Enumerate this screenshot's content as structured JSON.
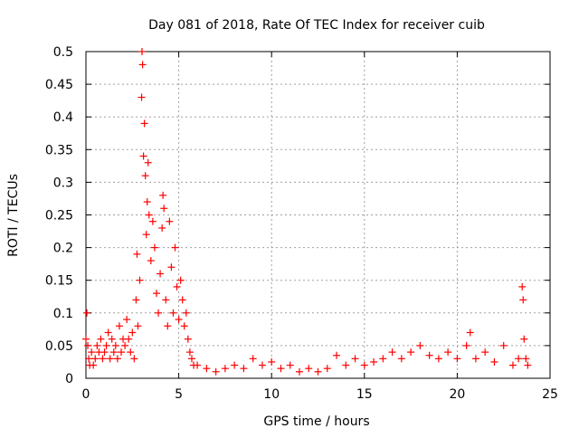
{
  "chart_data": {
    "type": "scatter",
    "title": "Day 081 of 2018, Rate Of TEC Index for receiver cuib",
    "xlabel": "GPS time / hours",
    "ylabel": "ROTI / TECUs",
    "xlim": [
      0,
      25
    ],
    "ylim": [
      0,
      0.5
    ],
    "x_ticks": [
      0,
      5,
      10,
      15,
      20,
      25
    ],
    "y_ticks": [
      0,
      0.05,
      0.1,
      0.15,
      0.2,
      0.25,
      0.3,
      0.35,
      0.4,
      0.45,
      0.5
    ],
    "x_tick_labels": [
      "0",
      "5",
      "10",
      "15",
      "20",
      "25"
    ],
    "y_tick_labels": [
      "0",
      "0.05",
      "0.1",
      "0.15",
      "0.2",
      "0.25",
      "0.3",
      "0.35",
      "0.4",
      "0.45",
      "0.5"
    ],
    "grid": true,
    "marker": "+",
    "color": "#ff0000",
    "series": [
      {
        "name": "ROTI",
        "points": [
          [
            0.0,
            0.06
          ],
          [
            0.05,
            0.1
          ],
          [
            0.1,
            0.05
          ],
          [
            0.15,
            0.03
          ],
          [
            0.2,
            0.02
          ],
          [
            0.3,
            0.04
          ],
          [
            0.4,
            0.02
          ],
          [
            0.5,
            0.03
          ],
          [
            0.6,
            0.05
          ],
          [
            0.7,
            0.04
          ],
          [
            0.8,
            0.06
          ],
          [
            0.9,
            0.03
          ],
          [
            1.0,
            0.04
          ],
          [
            1.1,
            0.05
          ],
          [
            1.2,
            0.07
          ],
          [
            1.3,
            0.03
          ],
          [
            1.4,
            0.06
          ],
          [
            1.5,
            0.04
          ],
          [
            1.6,
            0.05
          ],
          [
            1.7,
            0.03
          ],
          [
            1.8,
            0.08
          ],
          [
            1.9,
            0.04
          ],
          [
            2.0,
            0.06
          ],
          [
            2.1,
            0.05
          ],
          [
            2.2,
            0.09
          ],
          [
            2.3,
            0.06
          ],
          [
            2.4,
            0.04
          ],
          [
            2.5,
            0.07
          ],
          [
            2.6,
            0.03
          ],
          [
            2.7,
            0.12
          ],
          [
            2.75,
            0.19
          ],
          [
            2.8,
            0.08
          ],
          [
            2.9,
            0.15
          ],
          [
            3.0,
            0.43
          ],
          [
            3.02,
            0.5
          ],
          [
            3.05,
            0.48
          ],
          [
            3.1,
            0.34
          ],
          [
            3.15,
            0.39
          ],
          [
            3.2,
            0.31
          ],
          [
            3.25,
            0.22
          ],
          [
            3.3,
            0.27
          ],
          [
            3.35,
            0.33
          ],
          [
            3.4,
            0.25
          ],
          [
            3.5,
            0.18
          ],
          [
            3.6,
            0.24
          ],
          [
            3.7,
            0.2
          ],
          [
            3.8,
            0.13
          ],
          [
            3.9,
            0.1
          ],
          [
            4.0,
            0.16
          ],
          [
            4.1,
            0.23
          ],
          [
            4.15,
            0.28
          ],
          [
            4.2,
            0.26
          ],
          [
            4.3,
            0.12
          ],
          [
            4.4,
            0.08
          ],
          [
            4.5,
            0.24
          ],
          [
            4.6,
            0.17
          ],
          [
            4.7,
            0.1
          ],
          [
            4.8,
            0.2
          ],
          [
            4.9,
            0.14
          ],
          [
            5.0,
            0.09
          ],
          [
            5.1,
            0.15
          ],
          [
            5.2,
            0.12
          ],
          [
            5.3,
            0.08
          ],
          [
            5.4,
            0.1
          ],
          [
            5.5,
            0.06
          ],
          [
            5.6,
            0.04
          ],
          [
            5.7,
            0.03
          ],
          [
            5.8,
            0.02
          ],
          [
            6.0,
            0.02
          ],
          [
            6.5,
            0.015
          ],
          [
            7.0,
            0.01
          ],
          [
            7.5,
            0.015
          ],
          [
            8.0,
            0.02
          ],
          [
            8.5,
            0.015
          ],
          [
            9.0,
            0.03
          ],
          [
            9.5,
            0.02
          ],
          [
            10.0,
            0.025
          ],
          [
            10.5,
            0.015
          ],
          [
            11.0,
            0.02
          ],
          [
            11.5,
            0.01
          ],
          [
            12.0,
            0.015
          ],
          [
            12.5,
            0.01
          ],
          [
            13.0,
            0.015
          ],
          [
            13.5,
            0.035
          ],
          [
            14.0,
            0.02
          ],
          [
            14.5,
            0.03
          ],
          [
            15.0,
            0.02
          ],
          [
            15.5,
            0.025
          ],
          [
            16.0,
            0.03
          ],
          [
            16.5,
            0.04
          ],
          [
            17.0,
            0.03
          ],
          [
            17.5,
            0.04
          ],
          [
            18.0,
            0.05
          ],
          [
            18.5,
            0.035
          ],
          [
            19.0,
            0.03
          ],
          [
            19.5,
            0.04
          ],
          [
            20.0,
            0.03
          ],
          [
            20.5,
            0.05
          ],
          [
            20.7,
            0.07
          ],
          [
            21.0,
            0.03
          ],
          [
            21.5,
            0.04
          ],
          [
            22.0,
            0.025
          ],
          [
            22.5,
            0.05
          ],
          [
            23.0,
            0.02
          ],
          [
            23.3,
            0.03
          ],
          [
            23.5,
            0.14
          ],
          [
            23.55,
            0.12
          ],
          [
            23.6,
            0.06
          ],
          [
            23.7,
            0.03
          ],
          [
            23.8,
            0.02
          ]
        ]
      }
    ]
  }
}
